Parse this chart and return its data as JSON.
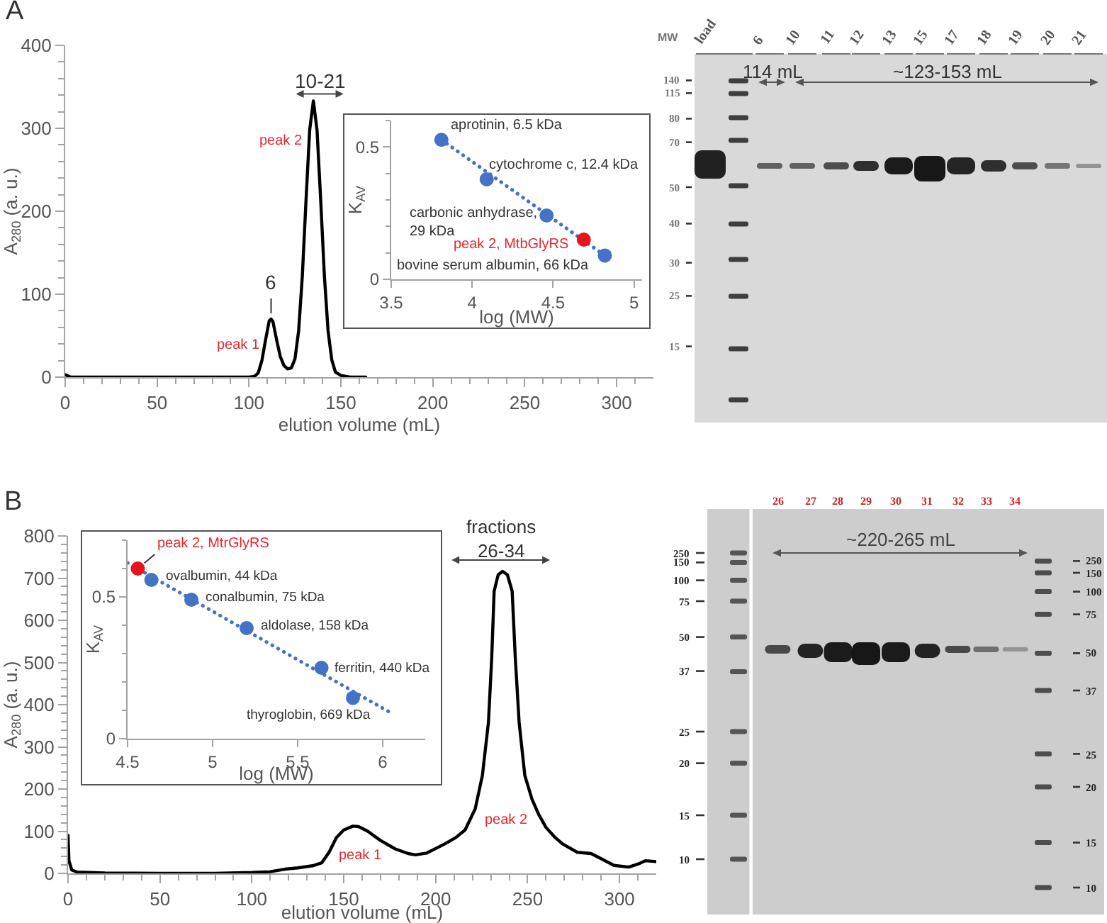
{
  "chart_data": [
    {
      "type": "line",
      "title": "A",
      "xlabel": "elution volume (mL)",
      "ylabel": "A$_{280}$ (a. u.)",
      "x": [
        0,
        1,
        3,
        10,
        50,
        100,
        103,
        105,
        107,
        109,
        111,
        112,
        113,
        115,
        117,
        119,
        121,
        123,
        125,
        127,
        129,
        131,
        133,
        135,
        137,
        139,
        141,
        143,
        145,
        147,
        150,
        155,
        163.5
      ],
      "series": [
        {
          "color": "#000000",
          "values": [
            3,
            2,
            0,
            0,
            0,
            0,
            1,
            5,
            20,
            45,
            68,
            70,
            67,
            45,
            25,
            14,
            10,
            11,
            22,
            56,
            122,
            213,
            298,
            333,
            298,
            213,
            122,
            56,
            21,
            6,
            2,
            0,
            0
          ]
        }
      ],
      "xlim": [
        0,
        320
      ],
      "xticks": [
        0,
        {
          "value": 10,
          "label": null
        },
        {
          "value": 20,
          "label": null
        },
        {
          "value": 30,
          "label": null
        },
        {
          "value": 40,
          "label": null
        },
        50,
        {
          "value": 60,
          "label": null
        },
        {
          "value": 70,
          "label": null
        },
        {
          "value": 80,
          "label": null
        },
        {
          "value": 90,
          "label": null
        },
        100,
        {
          "value": 110,
          "label": null
        },
        {
          "value": 120,
          "label": null
        },
        {
          "value": 130,
          "label": null
        },
        {
          "value": 140,
          "label": null
        },
        150,
        {
          "value": 160,
          "label": null
        },
        {
          "value": 170,
          "label": null
        },
        {
          "value": 180,
          "label": null
        },
        {
          "value": 190,
          "label": null
        },
        200,
        {
          "value": 210,
          "label": null
        },
        {
          "value": 220,
          "label": null
        },
        {
          "value": 230,
          "label": null
        },
        {
          "value": 240,
          "label": null
        },
        250,
        {
          "value": 260,
          "label": null
        },
        {
          "value": 270,
          "label": null
        },
        {
          "value": 280,
          "label": null
        },
        {
          "value": 290,
          "label": null
        },
        300,
        {
          "value": 310,
          "label": null
        }
      ],
      "ylim": [
        0,
        400
      ],
      "yticks": [
        0,
        {
          "value": 20,
          "label": null
        },
        {
          "value": 40,
          "label": null
        },
        {
          "value": 60,
          "label": null
        },
        {
          "value": 80,
          "label": null
        },
        100,
        {
          "value": 120,
          "label": null
        },
        {
          "value": 140,
          "label": null
        },
        {
          "value": 160,
          "label": null
        },
        {
          "value": 180,
          "label": null
        },
        200,
        {
          "value": 220,
          "label": null
        },
        {
          "value": 240,
          "label": null
        },
        {
          "value": 260,
          "label": null
        },
        {
          "value": 280,
          "label": null
        },
        300,
        {
          "value": 320,
          "label": null
        },
        {
          "value": 340,
          "label": null
        },
        {
          "value": 360,
          "label": null
        },
        {
          "value": 380,
          "label": null
        },
        400
      ],
      "annotations": [
        {
          "text": "6",
          "x": 112,
          "y": 70
        },
        {
          "text": "10-21",
          "x": 139,
          "y": 333
        },
        "peak 1",
        "peak 2",
        "load",
        "6",
        "10",
        "11",
        "12",
        "13",
        "15",
        "17",
        "18",
        "19",
        "20",
        "21",
        "MW",
        "140",
        "115",
        "80",
        "70",
        "50",
        "40",
        "30",
        "25",
        "15",
        "114 mL",
        "~123-153 mL"
      ]
    },
    {
      "type": "scatter",
      "xlabel": "log (MW)",
      "ylabel": "K$_{AV}$",
      "marker": "circle",
      "series": [
        {
          "type": "line",
          "line_style": "dotted",
          "marker": "none",
          "color": "#4472c4",
          "x": [
            3.81,
            4.82
          ],
          "values": [
            0.527,
            0.09
          ]
        },
        {
          "color": "#4472c4",
          "x": [
            3.81,
            4.09,
            4.46,
            4.82
          ],
          "values": [
            0.527,
            0.378,
            0.241,
            0.09
          ]
        },
        {
          "color": "#e8141c",
          "x": [
            4.69
          ],
          "values": [
            0.15
          ]
        }
      ],
      "xlim": [
        3.5,
        5.05
      ],
      "xticks": [
        3.5,
        4,
        4.5,
        5
      ],
      "ylim": [
        0,
        0.6
      ],
      "yticks": [
        0,
        {
          "value": 0.1,
          "label": null
        },
        {
          "value": 0.2,
          "label": null
        },
        {
          "value": 0.3,
          "label": null
        },
        {
          "value": 0.4,
          "label": null
        },
        0.5,
        {
          "value": 0.6,
          "label": null
        }
      ],
      "annotations": [
        {
          "text": "aprotinin, 6.5 kDa",
          "x": 3.81,
          "y": 0.527
        },
        {
          "text": "cytochrome c, 12.4 kDa",
          "x": 4.09,
          "y": 0.378
        },
        {
          "text": "carbonic anhydrase,\n29 kDa",
          "x": 4.46,
          "y": 0.241
        },
        {
          "text": "peak 2, MtbGlyRS",
          "x": 4.69,
          "y": 0.15
        },
        {
          "text": "bovine serum albumin, 66 kDa",
          "x": 4.82,
          "y": 0.09
        }
      ]
    },
    {
      "type": "line",
      "title": "B",
      "xlabel": "elution volume (mL)",
      "ylabel": "A$_{280}$ (a. u.)",
      "x": [
        0,
        0.5,
        2,
        5,
        20,
        50,
        80,
        100,
        110,
        118,
        125,
        133,
        138,
        142,
        146,
        150,
        155,
        158,
        163,
        170,
        178,
        185,
        189,
        195,
        205,
        211,
        216,
        221.5,
        225.4,
        228.7,
        230.5,
        231.8,
        234,
        236.4,
        239,
        241.6,
        243.3,
        245.4,
        248.5,
        252.4,
        256,
        260,
        265,
        269,
        277,
        284.5,
        290,
        297,
        305,
        310,
        314,
        320
      ],
      "series": [
        {
          "color": "#000000",
          "values": [
            90,
            30,
            8,
            3,
            1,
            0,
            0,
            2,
            4,
            10,
            13,
            18,
            25,
            50,
            85,
            103,
            112,
            111,
            100,
            78,
            58,
            47,
            44,
            48,
            70,
            85,
            103,
            153,
            232,
            358,
            512,
            669,
            708,
            716,
            708,
            669,
            512,
            358,
            232,
            176,
            140,
            109,
            85,
            70,
            50,
            47,
            35,
            19,
            15,
            22,
            30,
            28
          ]
        }
      ],
      "xlim": [
        0,
        320
      ],
      "xticks": [
        0,
        {
          "value": 10,
          "label": null
        },
        {
          "value": 20,
          "label": null
        },
        {
          "value": 30,
          "label": null
        },
        {
          "value": 40,
          "label": null
        },
        50,
        {
          "value": 60,
          "label": null
        },
        {
          "value": 70,
          "label": null
        },
        {
          "value": 80,
          "label": null
        },
        {
          "value": 90,
          "label": null
        },
        100,
        {
          "value": 110,
          "label": null
        },
        {
          "value": 120,
          "label": null
        },
        {
          "value": 130,
          "label": null
        },
        {
          "value": 140,
          "label": null
        },
        150,
        {
          "value": 160,
          "label": null
        },
        {
          "value": 170,
          "label": null
        },
        {
          "value": 180,
          "label": null
        },
        {
          "value": 190,
          "label": null
        },
        200,
        {
          "value": 210,
          "label": null
        },
        {
          "value": 220,
          "label": null
        },
        {
          "value": 230,
          "label": null
        },
        {
          "value": 240,
          "label": null
        },
        250,
        {
          "value": 260,
          "label": null
        },
        {
          "value": 270,
          "label": null
        },
        {
          "value": 280,
          "label": null
        },
        {
          "value": 290,
          "label": null
        },
        300,
        {
          "value": 310,
          "label": null
        }
      ],
      "ylim": [
        0,
        800
      ],
      "yticks": [
        0,
        {
          "value": 20,
          "label": null
        },
        {
          "value": 40,
          "label": null
        },
        {
          "value": 60,
          "label": null
        },
        {
          "value": 80,
          "label": null
        },
        100,
        {
          "value": 120,
          "label": null
        },
        {
          "value": 140,
          "label": null
        },
        {
          "value": 160,
          "label": null
        },
        {
          "value": 180,
          "label": null
        },
        200,
        {
          "value": 220,
          "label": null
        },
        {
          "value": 240,
          "label": null
        },
        {
          "value": 260,
          "label": null
        },
        {
          "value": 280,
          "label": null
        },
        300,
        {
          "value": 320,
          "label": null
        },
        {
          "value": 340,
          "label": null
        },
        {
          "value": 360,
          "label": null
        },
        {
          "value": 380,
          "label": null
        },
        400,
        {
          "value": 420,
          "label": null
        },
        {
          "value": 440,
          "label": null
        },
        {
          "value": 460,
          "label": null
        },
        {
          "value": 480,
          "label": null
        },
        500,
        {
          "value": 520,
          "label": null
        },
        {
          "value": 540,
          "label": null
        },
        {
          "value": 560,
          "label": null
        },
        {
          "value": 580,
          "label": null
        },
        600,
        {
          "value": 620,
          "label": null
        },
        {
          "value": 640,
          "label": null
        },
        {
          "value": 660,
          "label": null
        },
        {
          "value": 680,
          "label": null
        },
        700,
        {
          "value": 720,
          "label": null
        },
        {
          "value": 740,
          "label": null
        },
        {
          "value": 760,
          "label": null
        },
        {
          "value": 780,
          "label": null
        },
        800
      ],
      "annotations": [
        "peak 1",
        "peak 2",
        {
          "text": "fractions\n26-34",
          "x": 236,
          "y": 716
        },
        "26",
        "27",
        "28",
        "29",
        "30",
        "31",
        "32",
        "33",
        "34",
        "250",
        "150",
        "100",
        "75",
        "50",
        "37",
        "25",
        "20",
        "15",
        "10",
        "250",
        "150",
        "100",
        "75",
        "50",
        "37",
        "25",
        "20",
        "15",
        "10",
        "~220-265 mL"
      ]
    },
    {
      "type": "scatter",
      "xlabel": "log (MW)",
      "ylabel": "K$_{AV}$",
      "marker": "circle",
      "series": [
        {
          "type": "line",
          "line_style": "dotted",
          "marker": "none",
          "color": "#4472c4",
          "x": [
            4.5,
            6.06
          ],
          "values": [
            0.62,
            0.087
          ]
        },
        {
          "color": "#4472c4",
          "x": [
            4.64,
            4.875,
            5.2,
            5.64,
            5.825
          ],
          "values": [
            0.56,
            0.49,
            0.39,
            0.25,
            0.144
          ]
        },
        {
          "color": "#e8141c",
          "x": [
            4.56
          ],
          "values": [
            0.6
          ]
        }
      ],
      "xlim": [
        4.5,
        6.25
      ],
      "xticks": [
        4.5,
        5,
        5.5,
        6
      ],
      "ylim": [
        0,
        0.7
      ],
      "yticks": [
        0,
        {
          "value": 0.1,
          "label": null
        },
        {
          "value": 0.2,
          "label": null
        },
        {
          "value": 0.3,
          "label": null
        },
        {
          "value": 0.4,
          "label": null
        },
        0.5,
        {
          "value": 0.6,
          "label": null
        },
        {
          "value": 0.7,
          "label": null
        }
      ],
      "annotations": [
        {
          "text": "peak 2, MtrGlyRS",
          "x": 4.56,
          "y": 0.6
        },
        {
          "text": "ovalbumin, 44 kDa",
          "x": 4.64,
          "y": 0.56
        },
        {
          "text": "conalbumin, 75 kDa",
          "x": 4.875,
          "y": 0.49
        },
        {
          "text": "aldolase, 158 kDa",
          "x": 5.2,
          "y": 0.39
        },
        {
          "text": "ferritin, 440 kDa",
          "x": 5.64,
          "y": 0.25
        },
        {
          "text": "thyroglobin, 669 kDa",
          "x": 5.825,
          "y": 0.144
        }
      ]
    }
  ]
}
